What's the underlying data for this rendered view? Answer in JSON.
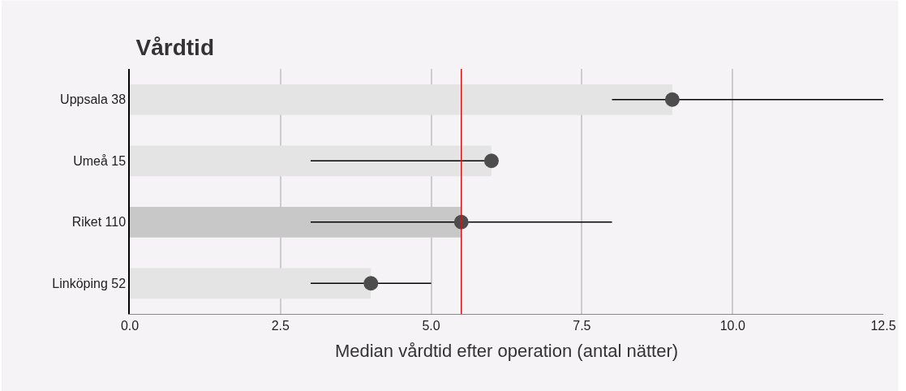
{
  "chart_data": {
    "type": "bar",
    "orientation": "horizontal",
    "title": "Vårdtid",
    "xlabel": "Median vårdtid efter operation (antal nätter)",
    "categories": [
      "Uppsala 38",
      "Umeå 15",
      "Riket 110",
      "Linköping 52"
    ],
    "series": [
      {
        "type": "bar",
        "colors": [
          "#e4e4e4",
          "#e4e4e4",
          "#c8c8c8",
          "#e4e4e4"
        ],
        "values": [
          9,
          6,
          5.5,
          4
        ]
      },
      {
        "type": "scatter",
        "color": "#4d4d4d",
        "marker": "circle",
        "values": [
          9,
          6,
          5.5,
          4
        ],
        "errors": [
          [
            8,
            12.5
          ],
          [
            3,
            6
          ],
          [
            3,
            8
          ],
          [
            3,
            5
          ]
        ]
      }
    ],
    "xlim": [
      0,
      12.5
    ],
    "xticks": [
      {
        "value": 0,
        "label": "0.0"
      },
      {
        "value": 2.5,
        "label": "2.5"
      },
      {
        "value": 5,
        "label": "5.0"
      },
      {
        "value": 7.5,
        "label": "7.5"
      },
      {
        "value": 10,
        "label": "10.0"
      },
      {
        "value": 12.5,
        "label": "12.5"
      }
    ],
    "ref_lines": [
      {
        "axis": "x",
        "value": 5.5,
        "color": "#ff0000"
      }
    ],
    "grid": "x"
  }
}
